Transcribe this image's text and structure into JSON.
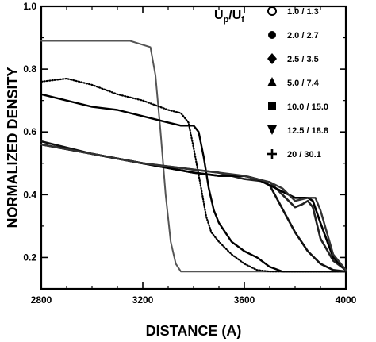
{
  "chart_data": {
    "type": "line",
    "xlabel": "DISTANCE (A)",
    "ylabel": "NORMALIZED DENSITY",
    "xlim": [
      2800,
      4000
    ],
    "ylim": [
      0.1,
      1.0
    ],
    "xticks": [
      2800,
      3200,
      3600,
      4000
    ],
    "xtick_labels": [
      "2800",
      "3200",
      "3600",
      "4000"
    ],
    "yticks": [
      0.2,
      0.4,
      0.6,
      0.8,
      1.0
    ],
    "ytick_labels": [
      "0.2",
      "0.4",
      "0.6",
      "0.8",
      "1.0"
    ],
    "legend_title_main": "U",
    "legend_title_sub1": "p",
    "legend_title_sep": "/U",
    "legend_title_sub2": "f",
    "legend_placement": "right",
    "grid": false,
    "series": [
      {
        "name": "1.0 / 1.3",
        "marker": "open-circle",
        "x": [
          2800,
          3000,
          3150,
          3230,
          3250,
          3270,
          3290,
          3310,
          3330,
          3350,
          3400,
          3600,
          3800,
          4000
        ],
        "y": [
          0.89,
          0.89,
          0.89,
          0.87,
          0.78,
          0.6,
          0.4,
          0.25,
          0.18,
          0.155,
          0.155,
          0.155,
          0.155,
          0.155
        ]
      },
      {
        "name": "2.0 / 2.7",
        "marker": "filled-circle",
        "x": [
          2800,
          2900,
          3000,
          3100,
          3200,
          3300,
          3350,
          3380,
          3400,
          3430,
          3450,
          3470,
          3500,
          3550,
          3600,
          3650,
          3700,
          3800,
          4000
        ],
        "y": [
          0.76,
          0.77,
          0.75,
          0.72,
          0.7,
          0.67,
          0.66,
          0.63,
          0.55,
          0.42,
          0.33,
          0.28,
          0.25,
          0.21,
          0.18,
          0.16,
          0.155,
          0.155,
          0.155
        ]
      },
      {
        "name": "2.5 / 3.5",
        "marker": "diamond",
        "x": [
          2800,
          2900,
          3000,
          3100,
          3200,
          3300,
          3350,
          3400,
          3420,
          3440,
          3460,
          3480,
          3500,
          3550,
          3600,
          3650,
          3700,
          3750,
          3800,
          4000
        ],
        "y": [
          0.72,
          0.7,
          0.68,
          0.67,
          0.65,
          0.63,
          0.62,
          0.62,
          0.6,
          0.52,
          0.42,
          0.35,
          0.31,
          0.25,
          0.22,
          0.2,
          0.17,
          0.155,
          0.155,
          0.155
        ]
      },
      {
        "name": "5.0 / 7.4",
        "marker": "triangle-up",
        "x": [
          2800,
          3000,
          3200,
          3400,
          3500,
          3600,
          3650,
          3700,
          3720,
          3760,
          3800,
          3850,
          3900,
          3950,
          4000
        ],
        "y": [
          0.57,
          0.53,
          0.5,
          0.47,
          0.46,
          0.46,
          0.45,
          0.43,
          0.4,
          0.34,
          0.28,
          0.22,
          0.18,
          0.16,
          0.155
        ]
      },
      {
        "name": "10.0 / 15.0",
        "marker": "filled-square",
        "x": [
          2800,
          3000,
          3200,
          3400,
          3500,
          3600,
          3700,
          3750,
          3800,
          3830,
          3850,
          3870,
          3900,
          3950,
          4000
        ],
        "y": [
          0.56,
          0.53,
          0.5,
          0.48,
          0.47,
          0.45,
          0.44,
          0.4,
          0.36,
          0.37,
          0.38,
          0.36,
          0.26,
          0.19,
          0.16
        ]
      },
      {
        "name": "12.5 / 18.8",
        "marker": "triangle-down",
        "x": [
          2800,
          3000,
          3200,
          3400,
          3500,
          3600,
          3650,
          3700,
          3800,
          3850,
          3870,
          3900,
          3950,
          4000
        ],
        "y": [
          0.56,
          0.53,
          0.5,
          0.47,
          0.46,
          0.46,
          0.45,
          0.43,
          0.39,
          0.39,
          0.38,
          0.31,
          0.2,
          0.16
        ]
      },
      {
        "name": "20 / 30.1",
        "marker": "plus",
        "x": [
          2800,
          3000,
          3200,
          3400,
          3500,
          3600,
          3700,
          3750,
          3800,
          3850,
          3880,
          3900,
          3950,
          4000
        ],
        "y": [
          0.56,
          0.53,
          0.5,
          0.48,
          0.47,
          0.46,
          0.44,
          0.42,
          0.38,
          0.39,
          0.39,
          0.35,
          0.21,
          0.16
        ]
      }
    ]
  }
}
